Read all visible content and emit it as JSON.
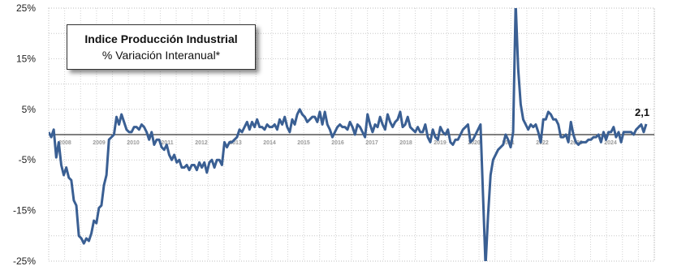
{
  "chart_data": {
    "type": "line",
    "title": "Indice Producción Industrial",
    "subtitle": "% Variación Interanual*",
    "ylim": [
      -25,
      25
    ],
    "y_ticks": [
      {
        "value": 25,
        "label": "25%"
      },
      {
        "value": 15,
        "label": "15%"
      },
      {
        "value": 5,
        "label": "5%"
      },
      {
        "value": -5,
        "label": "-5%"
      },
      {
        "value": -15,
        "label": "-15%"
      },
      {
        "value": -25,
        "label": "-25%"
      }
    ],
    "x_ticks": [
      "2008",
      "2009",
      "2010",
      "2011",
      "2012",
      "2013",
      "2014",
      "2015",
      "2016",
      "2017",
      "2018",
      "2019",
      "2020",
      "2021",
      "2022",
      "2023",
      "2024"
    ],
    "grid": true,
    "line_color": "#3A5F93",
    "last_value_label": "2,1",
    "series": [
      {
        "values": [
          0.5,
          -0.5,
          1.0,
          -4.5,
          -1.5,
          -6.0,
          -8.0,
          -6.5,
          -8.5,
          -9.0,
          -13.0,
          -14.0,
          -20.0,
          -20.5,
          -21.5,
          -20.5,
          -21.0,
          -19.5,
          -17.0,
          -17.5,
          -14.5,
          -14.0,
          -10.0,
          -8.0,
          -1.0,
          -0.5,
          0.0,
          3.5,
          2.0,
          4.0,
          2.5,
          1.0,
          0.5,
          0.5,
          1.5,
          1.5,
          1.0,
          2.0,
          1.5,
          0.5,
          -1.0,
          0.5,
          -2.0,
          -1.0,
          -1.0,
          -2.5,
          -3.0,
          -2.0,
          -4.0,
          -5.0,
          -4.0,
          -5.5,
          -5.0,
          -6.5,
          -6.5,
          -6.0,
          -7.0,
          -6.0,
          -6.0,
          -7.0,
          -5.5,
          -6.5,
          -5.5,
          -7.5,
          -5.5,
          -5.0,
          -6.5,
          -5.0,
          -5.0,
          -6.0,
          -1.5,
          -2.5,
          -1.5,
          -1.5,
          -1.0,
          -0.5,
          1.0,
          0.5,
          1.5,
          2.5,
          1.0,
          2.5,
          1.5,
          3.0,
          1.5,
          1.5,
          1.0,
          2.0,
          1.5,
          1.5,
          2.0,
          1.0,
          3.0,
          2.0,
          3.5,
          1.5,
          0.5,
          3.0,
          2.0,
          4.0,
          5.0,
          4.0,
          3.5,
          2.5,
          3.0,
          3.5,
          3.5,
          2.5,
          4.5,
          2.0,
          4.5,
          2.0,
          1.0,
          -0.5,
          0.5,
          1.5,
          2.0,
          1.5,
          1.5,
          1.0,
          2.5,
          1.5,
          0.0,
          2.0,
          1.5,
          0.5,
          -0.5,
          4.0,
          2.0,
          0.5,
          2.0,
          1.5,
          3.5,
          2.0,
          1.0,
          4.0,
          2.5,
          1.5,
          2.5,
          3.0,
          4.5,
          1.5,
          2.0,
          3.5,
          1.5,
          1.0,
          0.5,
          1.5,
          0.5,
          0.5,
          2.0,
          -0.5,
          -1.5,
          1.0,
          -0.5,
          -1.0,
          1.5,
          0.5,
          0.0,
          1.0,
          -1.5,
          -2.0,
          -1.0,
          -1.0,
          0.0,
          1.0,
          1.5,
          2.0,
          -1.5,
          -1.0,
          0.0,
          1.0,
          2.0,
          -12.0,
          -26.0,
          -16.0,
          -8.0,
          -5.0,
          -4.0,
          -3.0,
          -2.5,
          -2.0,
          0.0,
          -1.0,
          -2.5,
          0.5,
          26.0,
          13.0,
          6.0,
          3.0,
          2.0,
          1.0,
          2.0,
          1.5,
          2.0,
          0.5,
          -1.5,
          3.0,
          3.0,
          4.5,
          4.0,
          3.0,
          3.0,
          2.0,
          -0.5,
          -0.5,
          0.0,
          -1.5,
          2.5,
          0.0,
          -1.5,
          -2.0,
          -1.5,
          -1.5,
          -1.5,
          -1.0,
          -1.0,
          -0.5,
          -0.5,
          0.0,
          -1.5,
          0.5,
          -1.0,
          0.5,
          0.5,
          1.5,
          -0.5,
          0.5,
          -1.5,
          0.5,
          0.5,
          0.5,
          0.5,
          0.0,
          1.0,
          1.5,
          2.0,
          0.5,
          2.1
        ]
      }
    ]
  }
}
